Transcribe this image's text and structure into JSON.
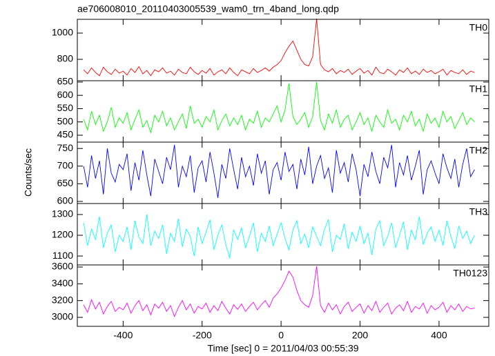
{
  "chart_data": {
    "type": "line",
    "title": "ae706008010_20110403005539_wam0_trn_4band_long.qdp",
    "x_label": "Time [sec] 0 = 2011/04/03 00:55:39",
    "y_label": "Counts/sec",
    "xlim": [
      -516,
      526
    ],
    "xticks": [
      -400,
      -200,
      0,
      200,
      400
    ],
    "x": [
      -500,
      -490,
      -480,
      -470,
      -460,
      -450,
      -440,
      -430,
      -420,
      -410,
      -400,
      -390,
      -380,
      -370,
      -360,
      -350,
      -340,
      -330,
      -320,
      -310,
      -300,
      -290,
      -280,
      -270,
      -260,
      -250,
      -240,
      -230,
      -220,
      -210,
      -200,
      -190,
      -180,
      -170,
      -160,
      -150,
      -140,
      -130,
      -120,
      -110,
      -100,
      -90,
      -80,
      -70,
      -60,
      -50,
      -40,
      -30,
      -20,
      -10,
      0,
      10,
      20,
      30,
      40,
      50,
      60,
      70,
      80,
      90,
      100,
      110,
      120,
      130,
      140,
      150,
      160,
      170,
      180,
      190,
      200,
      210,
      220,
      230,
      240,
      250,
      260,
      270,
      280,
      290,
      300,
      310,
      320,
      330,
      340,
      350,
      360,
      370,
      380,
      390,
      400,
      410,
      420,
      430,
      440,
      450,
      460,
      470,
      480,
      490
    ],
    "series": [
      {
        "name": "TH0",
        "color": "#ff0000",
        "ylim": [
          637,
          1105
        ],
        "yticks": [
          800,
          1000
        ],
        "values": [
          720,
          690,
          735,
          700,
          675,
          740,
          705,
          685,
          725,
          695,
          710,
          680,
          730,
          700,
          745,
          690,
          715,
          675,
          720,
          705,
          735,
          695,
          710,
          680,
          725,
          700,
          690,
          740,
          705,
          685,
          715,
          695,
          730,
          680,
          705,
          720,
          690,
          735,
          700,
          675,
          720,
          705,
          690,
          730,
          700,
          715,
          735,
          710,
          740,
          760,
          790,
          850,
          900,
          940,
          870,
          800,
          760,
          750,
          820,
          1110,
          760,
          720,
          705,
          730,
          690,
          715,
          700,
          725,
          685,
          710,
          730,
          695,
          715,
          680,
          740,
          700,
          690,
          725,
          705,
          680,
          720,
          700,
          735,
          690,
          710,
          685,
          725,
          700,
          715,
          690,
          705,
          725,
          680,
          715,
          700,
          690,
          720,
          685,
          710,
          700
        ]
      },
      {
        "name": "TH1",
        "color": "#00ff00",
        "ylim": [
          424,
          655
        ],
        "yticks": [
          450,
          500,
          550,
          600,
          650
        ],
        "values": [
          510,
          470,
          540,
          490,
          525,
          465,
          500,
          555,
          480,
          515,
          495,
          535,
          470,
          510,
          545,
          480,
          505,
          460,
          525,
          500,
          540,
          485,
          515,
          470,
          500,
          530,
          475,
          560,
          495,
          510,
          480,
          520,
          500,
          545,
          470,
          505,
          530,
          485,
          515,
          490,
          525,
          470,
          510,
          495,
          540,
          480,
          515,
          500,
          530,
          560,
          500,
          545,
          645,
          520,
          490,
          510,
          535,
          480,
          520,
          650,
          505,
          470,
          530,
          495,
          545,
          480,
          510,
          525,
          470,
          500,
          535,
          490,
          515,
          465,
          525,
          500,
          480,
          545,
          495,
          510,
          470,
          525,
          500,
          540,
          485,
          510,
          465,
          530,
          495,
          515,
          480,
          540,
          500,
          520,
          475,
          505,
          535,
          490,
          515,
          500
        ]
      },
      {
        "name": "TH2",
        "color": "#0000ff",
        "ylim": [
          594,
          768
        ],
        "yticks": [
          600,
          650,
          700,
          750
        ],
        "values": [
          700,
          640,
          730,
          665,
          715,
          620,
          750,
          680,
          655,
          705,
          690,
          735,
          630,
          710,
          660,
          745,
          675,
          615,
          720,
          685,
          650,
          725,
          690,
          760,
          640,
          700,
          670,
          730,
          625,
          695,
          715,
          655,
          740,
          680,
          610,
          705,
          665,
          750,
          690,
          635,
          725,
          670,
          700,
          645,
          735,
          680,
          715,
          620,
          690,
          710,
          660,
          740,
          685,
          705,
          635,
          720,
          675,
          755,
          650,
          700,
          730,
          665,
          695,
          625,
          745,
          680,
          710,
          655,
          735,
          690,
          615,
          705,
          670,
          740,
          685,
          650,
          725,
          695,
          760,
          640,
          710,
          675,
          730,
          660,
          700,
          745,
          620,
          690,
          715,
          680,
          650,
          735,
          695,
          665,
          720,
          640,
          705,
          750,
          670,
          690
        ]
      },
      {
        "name": "TH3",
        "color": "#00ffff",
        "ylim": [
          1057,
          1353
        ],
        "yticks": [
          1100,
          1200,
          1300
        ],
        "values": [
          1260,
          1150,
          1230,
          1180,
          1290,
          1140,
          1210,
          1250,
          1120,
          1200,
          1170,
          1240,
          1130,
          1270,
          1190,
          1160,
          1300,
          1150,
          1220,
          1185,
          1250,
          1110,
          1210,
          1170,
          1280,
          1145,
          1230,
          1195,
          1100,
          1240,
          1160,
          1215,
          1275,
          1130,
          1200,
          1250,
          1155,
          1090,
          1225,
          1180,
          1235,
          1140,
          1195,
          1260,
          1120,
          1210,
          1170,
          1245,
          1150,
          1205,
          1260,
          1185,
          1130,
          1225,
          1270,
          1160,
          1205,
          1140,
          1240,
          1195,
          1150,
          1230,
          1275,
          1120,
          1200,
          1180,
          1255,
          1135,
          1215,
          1170,
          1245,
          1160,
          1210,
          1105,
          1230,
          1270,
          1150,
          1195,
          1260,
          1140,
          1200,
          1265,
          1130,
          1225,
          1180,
          1290,
          1155,
          1210,
          1240,
          1170,
          1225,
          1150,
          1270,
          1195,
          1135,
          1245,
          1185,
          1220,
          1160,
          1200
        ]
      },
      {
        "name": "TH0123",
        "color": "#ff00ff",
        "ylim": [
          2893,
          3625
        ],
        "yticks": [
          3000,
          3200,
          3400,
          3600
        ],
        "values": [
          3150,
          3060,
          3210,
          3100,
          3180,
          3040,
          3130,
          3190,
          3070,
          3120,
          3090,
          3170,
          3050,
          3140,
          3200,
          3080,
          3150,
          3030,
          3160,
          3110,
          3180,
          3070,
          3140,
          3010,
          3120,
          3200,
          3090,
          3160,
          3050,
          3130,
          3100,
          3170,
          3060,
          3140,
          3080,
          3190,
          3110,
          3040,
          3150,
          3095,
          3160,
          3070,
          3130,
          3180,
          3090,
          3150,
          3200,
          3120,
          3230,
          3280,
          3350,
          3440,
          3550,
          3480,
          3320,
          3200,
          3150,
          3120,
          3260,
          3610,
          3140,
          3060,
          3170,
          3090,
          3150,
          3040,
          3130,
          3180,
          3070,
          3120,
          3160,
          3050,
          3140,
          3080,
          3190,
          3060,
          3120,
          3170,
          3040,
          3110,
          3150,
          3080,
          3190,
          3060,
          3130,
          3100,
          3170,
          3050,
          3140,
          3090,
          3120,
          3180,
          3060,
          3140,
          3090,
          3160,
          3070,
          3130,
          3100,
          3110
        ]
      }
    ]
  }
}
